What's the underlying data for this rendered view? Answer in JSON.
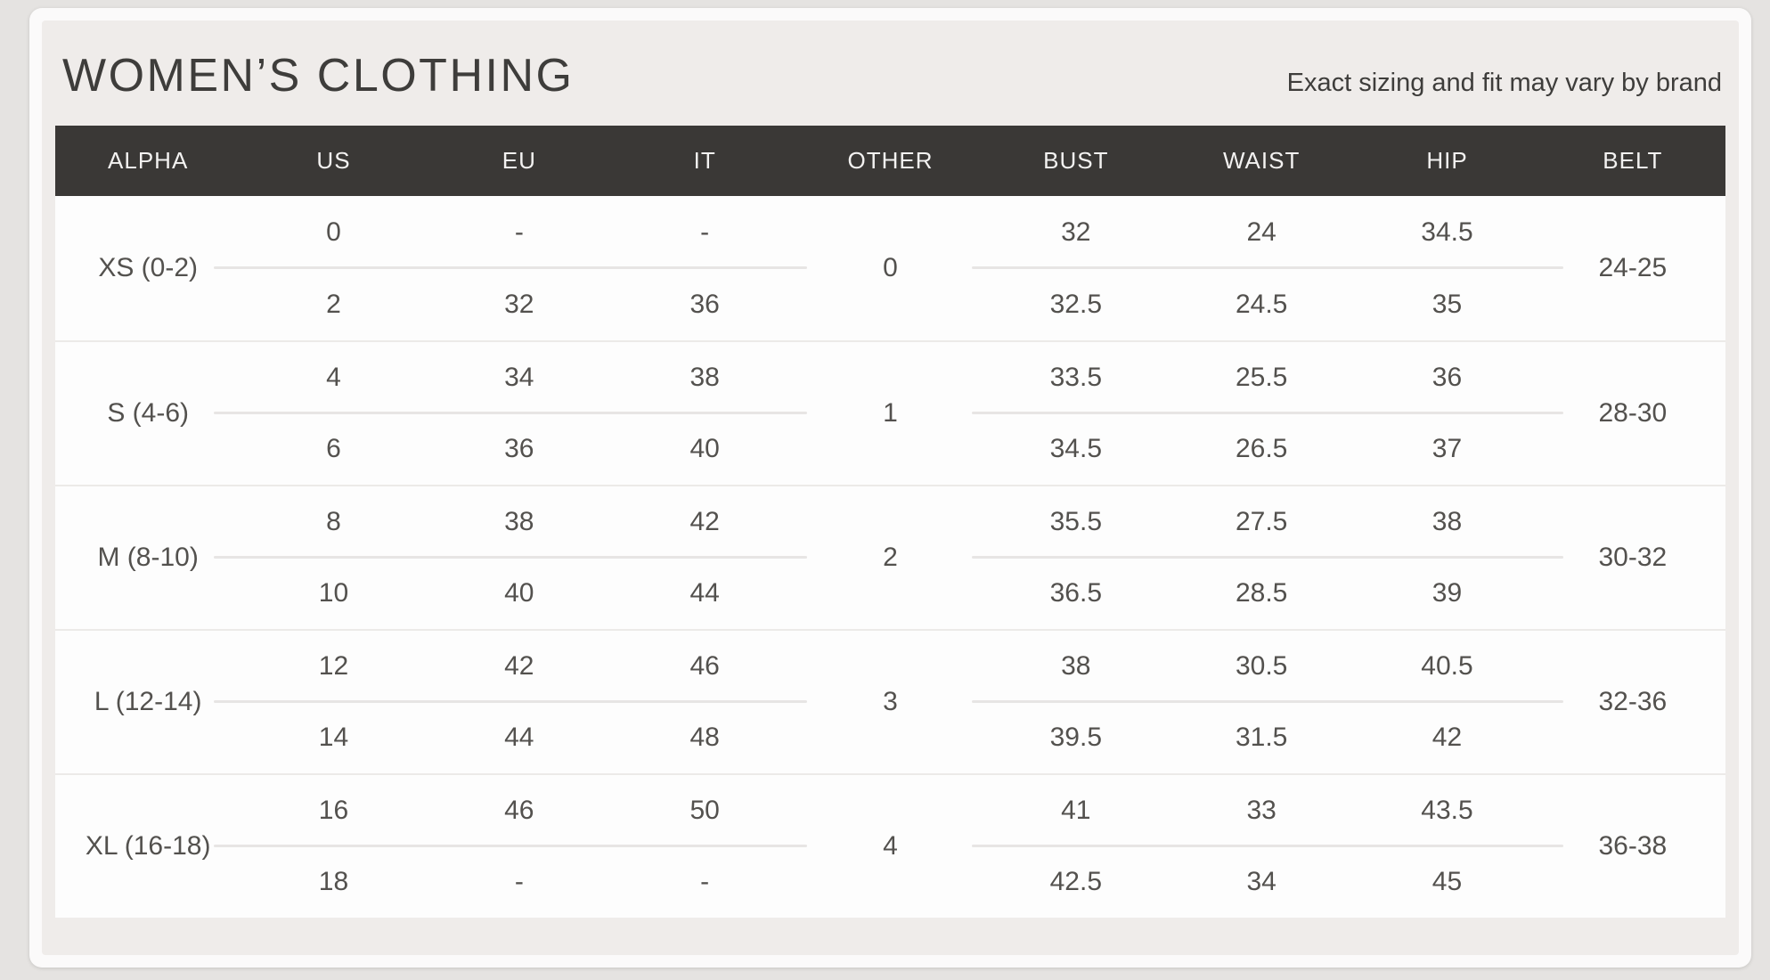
{
  "header": {
    "title": "WOMEN’S CLOTHING",
    "note": "Exact sizing and fit may vary by brand"
  },
  "chart_data": {
    "type": "table",
    "title": "WOMEN’S CLOTHING",
    "subtitle": "Exact sizing and fit may vary by brand",
    "columns": [
      "ALPHA",
      "US",
      "EU",
      "IT",
      "OTHER",
      "BUST",
      "WAIST",
      "HIP",
      "BELT"
    ],
    "rows": [
      {
        "alpha": "XS (0-2)",
        "us": [
          "0",
          "2"
        ],
        "eu": [
          "-",
          "32"
        ],
        "it": [
          "-",
          "36"
        ],
        "other": "0",
        "bust": [
          "32",
          "32.5"
        ],
        "waist": [
          "24",
          "24.5"
        ],
        "hip": [
          "34.5",
          "35"
        ],
        "belt": "24-25"
      },
      {
        "alpha": "S (4-6)",
        "us": [
          "4",
          "6"
        ],
        "eu": [
          "34",
          "36"
        ],
        "it": [
          "38",
          "40"
        ],
        "other": "1",
        "bust": [
          "33.5",
          "34.5"
        ],
        "waist": [
          "25.5",
          "26.5"
        ],
        "hip": [
          "36",
          "37"
        ],
        "belt": "28-30"
      },
      {
        "alpha": "M (8-10)",
        "us": [
          "8",
          "10"
        ],
        "eu": [
          "38",
          "40"
        ],
        "it": [
          "42",
          "44"
        ],
        "other": "2",
        "bust": [
          "35.5",
          "36.5"
        ],
        "waist": [
          "27.5",
          "28.5"
        ],
        "hip": [
          "38",
          "39"
        ],
        "belt": "30-32"
      },
      {
        "alpha": "L (12-14)",
        "us": [
          "12",
          "14"
        ],
        "eu": [
          "42",
          "44"
        ],
        "it": [
          "46",
          "48"
        ],
        "other": "3",
        "bust": [
          "38",
          "39.5"
        ],
        "waist": [
          "30.5",
          "31.5"
        ],
        "hip": [
          "40.5",
          "42"
        ],
        "belt": "32-36"
      },
      {
        "alpha": "XL (16-18)",
        "us": [
          "16",
          "18"
        ],
        "eu": [
          "46",
          "-"
        ],
        "it": [
          "50",
          "-"
        ],
        "other": "4",
        "bust": [
          "41",
          "42.5"
        ],
        "waist": [
          "33",
          "34"
        ],
        "hip": [
          "43.5",
          "45"
        ],
        "belt": "36-38"
      }
    ]
  },
  "colors": {
    "page_bg": "#e5e3e1",
    "card_bg": "#fbfafa",
    "panel_bg": "#efecea",
    "header_bg": "#3a3836",
    "header_text": "#f3f2f1",
    "body_text": "#53514e",
    "title_text": "#3e3d3b"
  }
}
